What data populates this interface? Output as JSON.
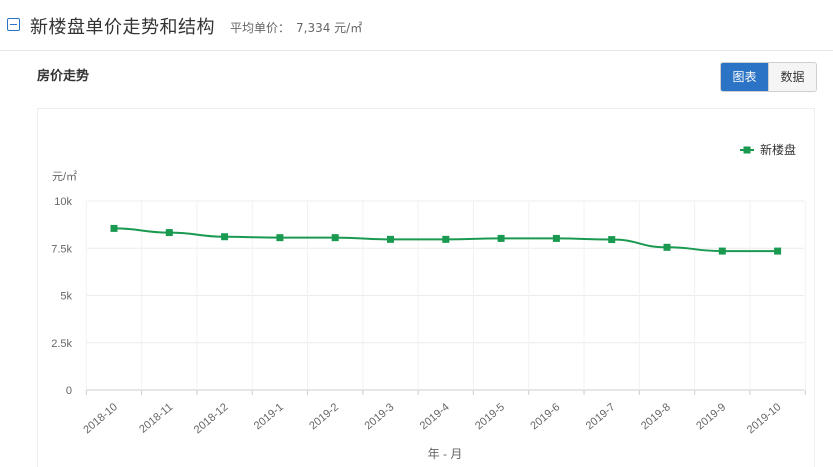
{
  "header": {
    "title": "新楼盘单价走势和结构",
    "avg_label": "平均单价：",
    "avg_value": "7,334 元/㎡"
  },
  "section": {
    "title": "房价走势"
  },
  "toggle": {
    "chart_label": "图表",
    "data_label": "数据",
    "active": "图表"
  },
  "colors": {
    "accent": "#2b73c5",
    "series": "#1a9a50"
  },
  "chart_data": {
    "type": "line",
    "ylabel": "元/㎡",
    "xlabel": "年 - 月",
    "ylim": [
      0,
      10000
    ],
    "yticks": [
      0,
      2500,
      5000,
      7500,
      10000
    ],
    "ytick_labels": [
      "0",
      "2.5k",
      "5k",
      "7.5k",
      "10k"
    ],
    "grid": true,
    "legend_position": "top-right",
    "categories": [
      "2018-10",
      "2018-11",
      "2018-12",
      "2019-1",
      "2019-2",
      "2019-3",
      "2019-4",
      "2019-5",
      "2019-6",
      "2019-7",
      "2019-8",
      "2019-9",
      "2019-10"
    ],
    "series": [
      {
        "name": "新楼盘",
        "values": [
          8550,
          8330,
          8110,
          8060,
          8060,
          7970,
          7970,
          8020,
          8020,
          7960,
          7550,
          7350,
          7350
        ]
      }
    ]
  }
}
